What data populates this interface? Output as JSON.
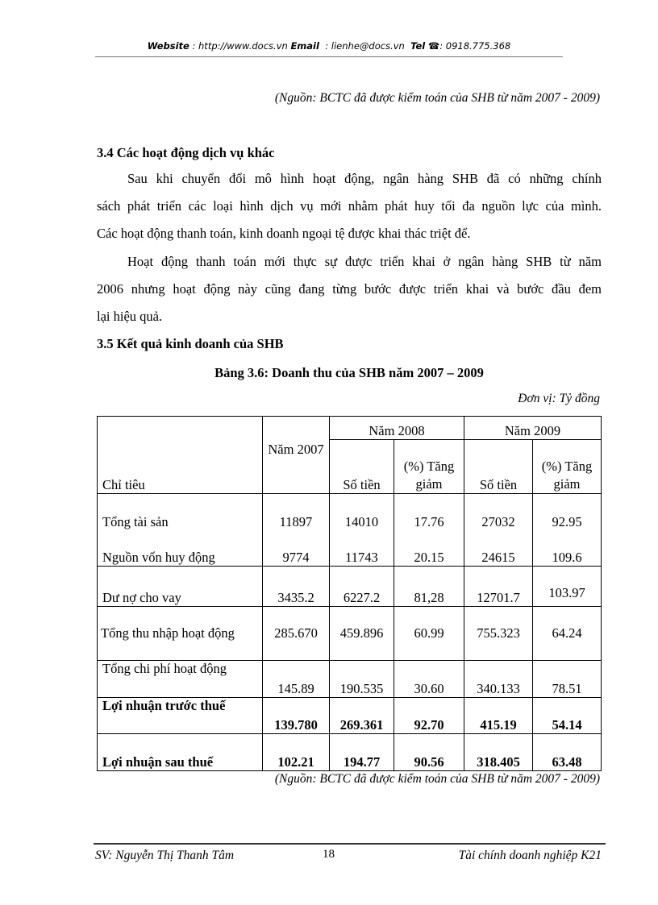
{
  "header": {
    "website_label": "Website",
    "website": "http://www.docs.vn",
    "email_label": "Email",
    "email": "lienhe@docs.vn",
    "tel_label": "Tel",
    "tel_icon": "phone-icon",
    "tel": "0918.775.368"
  },
  "source_top": "(Nguồn: BCTC đã được kiểm toán của SHB từ năm 2007 - 2009)",
  "section_34": {
    "heading": "3.4 Các hoạt động dịch vụ khác",
    "lines": [
      "Sau khi chuyển đổi mô hình hoạt động, ngân hàng SHB đã có những chính",
      "sách phát triển các loại hình dịch vụ mới nhằm phát huy tối đa nguồn lực của mình.",
      "Các hoạt động thanh toán, kinh doanh ngoại tệ được khai thác triệt để.",
      "Hoạt động thanh toán mới thực sự được triển khai ở ngân hàng SHB từ năm",
      "2006 nhưng hoạt động này cũng đang từng bước được triển khai và bước đầu đem",
      "lại hiệu quả."
    ]
  },
  "section_35": {
    "heading": "3.5 Kết quả kinh doanh của SHB"
  },
  "table": {
    "title": "Bảng 3.6: Doanh thu của SHB năm 2007 – 2009",
    "unit": "Đơn vị: Tỷ đồng",
    "headers": {
      "indicator": "Chỉ tiêu",
      "y2007": "Năm 2007",
      "y2008": "Năm 2008",
      "y2009": "Năm 2009",
      "amount": "Số tiền",
      "pct": "(%) Tăng giảm"
    },
    "rows": [
      [
        "Tổng tài sản",
        "11897",
        "14010",
        "17.76",
        "27032",
        "92.95"
      ],
      [
        "Nguồn vốn huy động",
        "9774",
        "11743",
        "20.15",
        "24615",
        "109.6"
      ],
      [
        "Dư nợ cho vay",
        "3435.2",
        "6227.2",
        "81,28",
        "12701.7",
        "103.97"
      ],
      [
        "Tổng thu nhập hoạt động",
        "285.670",
        "459.896",
        "60.99",
        "755.323",
        "64.24"
      ],
      [
        "Tổng chi phí hoạt động",
        "145.89",
        "190.535",
        "30.60",
        "340.133",
        "78.51"
      ],
      [
        "Lợi nhuận trước thuế",
        "139.780",
        "269.361",
        "92.70",
        "415.19",
        "54.14"
      ],
      [
        "Lợi nhuận sau thuế",
        "102.21",
        "194.77",
        "90.56",
        "318.405",
        "63.48"
      ]
    ],
    "source": "(Nguồn: BCTC đã được kiểm toán của SHB từ năm 2007 - 2009)"
  },
  "footer": {
    "student": "SV: Nguyễn Thị Thanh Tâm",
    "page": "18",
    "program": "Tài chính doanh nghiệp K21"
  }
}
